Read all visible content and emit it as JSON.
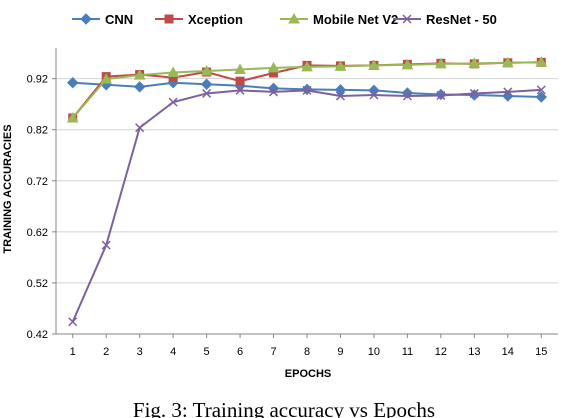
{
  "chart_data": {
    "type": "line",
    "x": [
      1,
      2,
      3,
      4,
      5,
      6,
      7,
      8,
      9,
      10,
      11,
      12,
      13,
      14,
      15
    ],
    "xlabel": "EPOCHS",
    "ylabel": "TRAINING ACCURACIES",
    "ylim": [
      0.42,
      0.98
    ],
    "yticks": [
      "0.42",
      "0.52",
      "0.62",
      "0.72",
      "0.82",
      "0.92"
    ],
    "xticks": [
      "1",
      "2",
      "3",
      "4",
      "5",
      "6",
      "7",
      "8",
      "9",
      "10",
      "11",
      "12",
      "13",
      "14",
      "15"
    ],
    "grid": "horizontal",
    "legend_position": "top",
    "caption": "Fig. 3: Training accuracy vs Epochs",
    "series": [
      {
        "name": "CNN",
        "color": "#4a7ebb",
        "marker": "diamond",
        "values": [
          0.912,
          0.908,
          0.904,
          0.912,
          0.909,
          0.906,
          0.901,
          0.899,
          0.898,
          0.897,
          0.892,
          0.889,
          0.888,
          0.886,
          0.884
        ]
      },
      {
        "name": "Xception",
        "color": "#be4b48",
        "marker": "square",
        "values": [
          0.843,
          0.924,
          0.928,
          0.922,
          0.933,
          0.915,
          0.931,
          0.946,
          0.945,
          0.946,
          0.948,
          0.95,
          0.949,
          0.951,
          0.952
        ]
      },
      {
        "name": "Mobile Net V2",
        "color": "#98b954",
        "marker": "triangle",
        "values": [
          0.843,
          0.919,
          0.927,
          0.932,
          0.935,
          0.938,
          0.941,
          0.943,
          0.944,
          0.946,
          0.947,
          0.949,
          0.95,
          0.951,
          0.952
        ]
      },
      {
        "name": "ResNet - 50",
        "color": "#7d60a0",
        "marker": "x",
        "values": [
          0.444,
          0.594,
          0.824,
          0.874,
          0.891,
          0.897,
          0.894,
          0.897,
          0.886,
          0.888,
          0.886,
          0.887,
          0.891,
          0.894,
          0.898
        ]
      }
    ]
  }
}
